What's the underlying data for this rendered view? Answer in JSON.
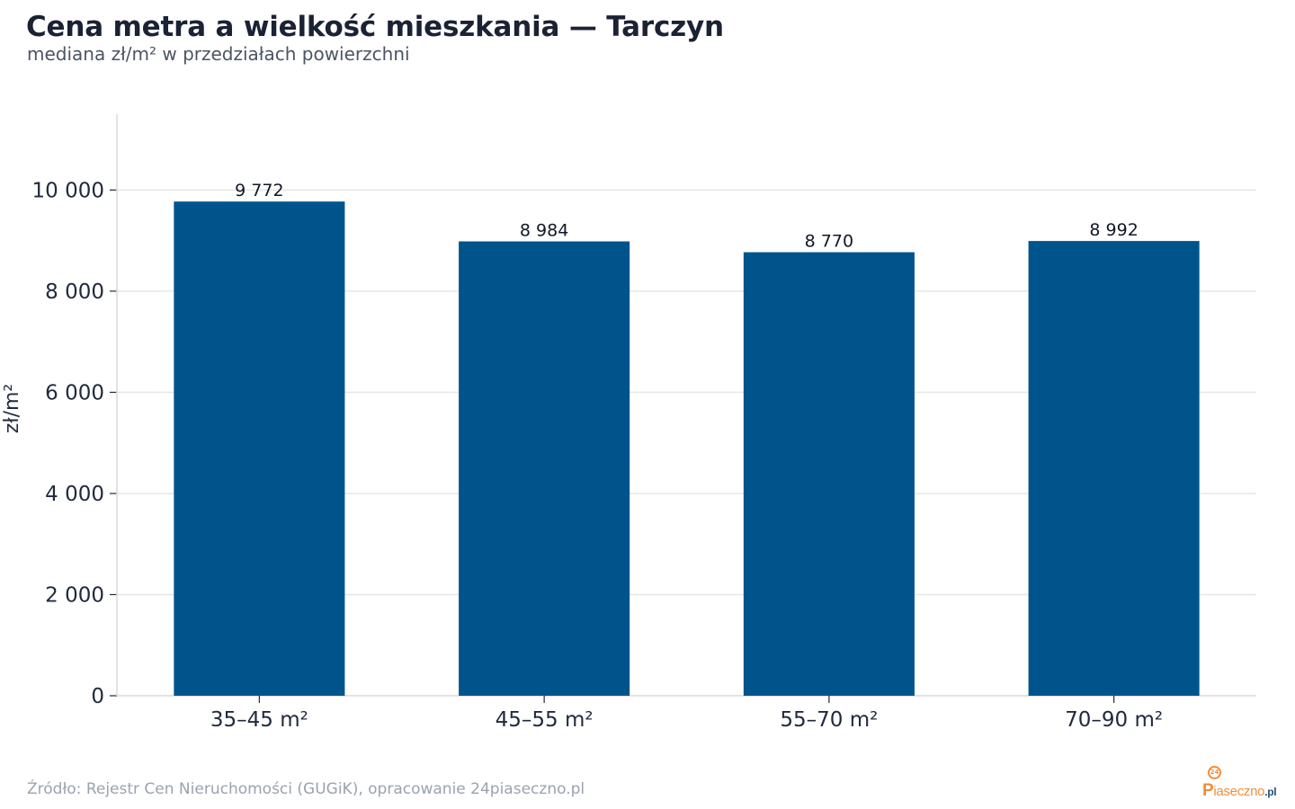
{
  "header": {
    "title": "Cena metra a wielkość mieszkania — Tarczyn",
    "subtitle": "mediana zł/m² w przedziałach powierzchni"
  },
  "chart_data": {
    "type": "bar",
    "title": "Cena metra a wielkość mieszkania — Tarczyn",
    "subtitle": "mediana zł/m² w przedziałach powierzchni",
    "categories": [
      "35–45 m²",
      "45–55 m²",
      "55–70 m²",
      "70–90 m²"
    ],
    "values": [
      9772,
      8984,
      8770,
      8992
    ],
    "value_labels": [
      "9 772",
      "8 984",
      "8 770",
      "8 992"
    ],
    "xlabel": "",
    "ylabel": "zł/m²",
    "ylim": [
      0,
      11500
    ],
    "yticks": [
      0,
      2000,
      4000,
      6000,
      8000,
      10000
    ],
    "ytick_labels": [
      "0",
      "2 000",
      "4 000",
      "6 000",
      "8 000",
      "10 000"
    ],
    "grid": "horizontal",
    "legend": "none",
    "colors": {
      "bar": "#00548c",
      "grid": "#e6e6e6",
      "axis": "#d9d9d9",
      "text": "#1f2a3c"
    }
  },
  "footer": {
    "source": "Źródło: Rejestr Cen Nieruchomości (GUGiK), opracowanie 24piaseczno.pl"
  },
  "logo": {
    "badge": "24",
    "letter": "P",
    "word": "iaseczno",
    "tld": ".pl",
    "color": "#f28c38"
  }
}
